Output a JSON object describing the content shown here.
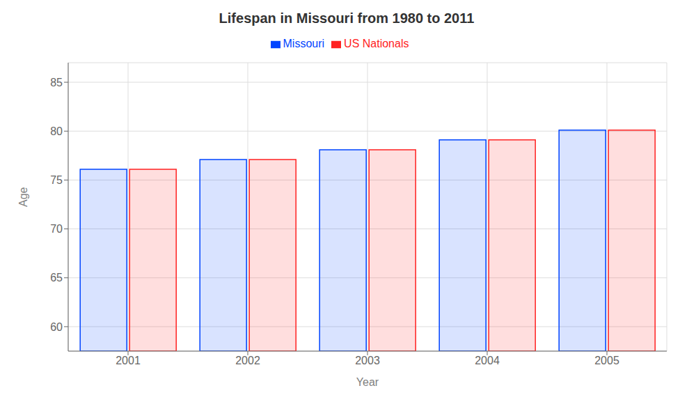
{
  "chart_data": {
    "type": "bar",
    "title": "Lifespan in Missouri from 1980 to 2011",
    "x_label": "Year",
    "y_label": "Age",
    "categories": [
      "2001",
      "2002",
      "2003",
      "2004",
      "2005"
    ],
    "series": [
      {
        "name": "Missouri",
        "color": "#0044ff",
        "values": [
          76.1,
          77.1,
          78.1,
          79.1,
          80.1
        ]
      },
      {
        "name": "US Nationals",
        "color": "#ff2222",
        "values": [
          76.1,
          77.1,
          78.1,
          79.1,
          80.1
        ]
      }
    ],
    "ylim": [
      57.5,
      87
    ],
    "yticks": [
      60,
      65,
      70,
      75,
      80,
      85
    ],
    "grid": true,
    "legend": "top"
  }
}
